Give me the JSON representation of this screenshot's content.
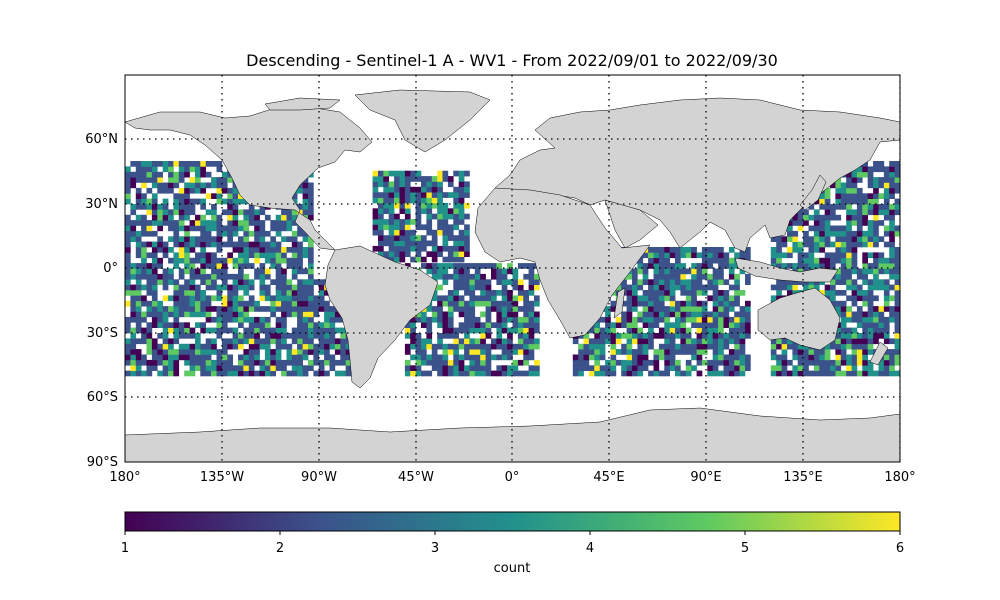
{
  "title": "Descending - Sentinel-1 A - WV1 - From 2022/09/01 to 2022/09/30",
  "lon_ticks": [
    "180°",
    "135°W",
    "90°W",
    "45°W",
    "0°",
    "45°E",
    "90°E",
    "135°E",
    "180°"
  ],
  "lat_ticks": [
    "60°N",
    "30°N",
    "0°",
    "30°S",
    "60°S",
    "90°S"
  ],
  "colorbar": {
    "label": "count",
    "ticks": [
      "1",
      "2",
      "3",
      "4",
      "5",
      "6"
    ],
    "min": 1,
    "max": 6,
    "colormap": "viridis",
    "colors": [
      "#440154",
      "#3b528b",
      "#21918c",
      "#5ec962",
      "#fde725"
    ]
  },
  "map": {
    "projection": "PlateCarree",
    "lon_range": [
      -180,
      180
    ],
    "lat_range": [
      -90,
      90
    ],
    "land_color": "#d3d3d3",
    "gridlines": "dotted",
    "cell_size_deg": 2.5,
    "swath_regions": [
      {
        "name": "Pacific",
        "lon": [
          -180,
          -93
        ],
        "lat": [
          -50,
          50
        ]
      },
      {
        "name": "North Atlantic",
        "lon": [
          -65,
          -22
        ],
        "lat": [
          3,
          45
        ]
      },
      {
        "name": "South Atlantic",
        "lon": [
          -50,
          12
        ],
        "lat": [
          -50,
          2
        ]
      },
      {
        "name": "Southeast Pacific",
        "lon": [
          -100,
          -72
        ],
        "lat": [
          -50,
          -5
        ]
      },
      {
        "name": "Indian Ocean",
        "lon": [
          28,
          110
        ],
        "lat": [
          -50,
          10
        ]
      },
      {
        "name": "Western Pacific",
        "lon": [
          120,
          180
        ],
        "lat": [
          -50,
          50
        ]
      }
    ]
  }
}
